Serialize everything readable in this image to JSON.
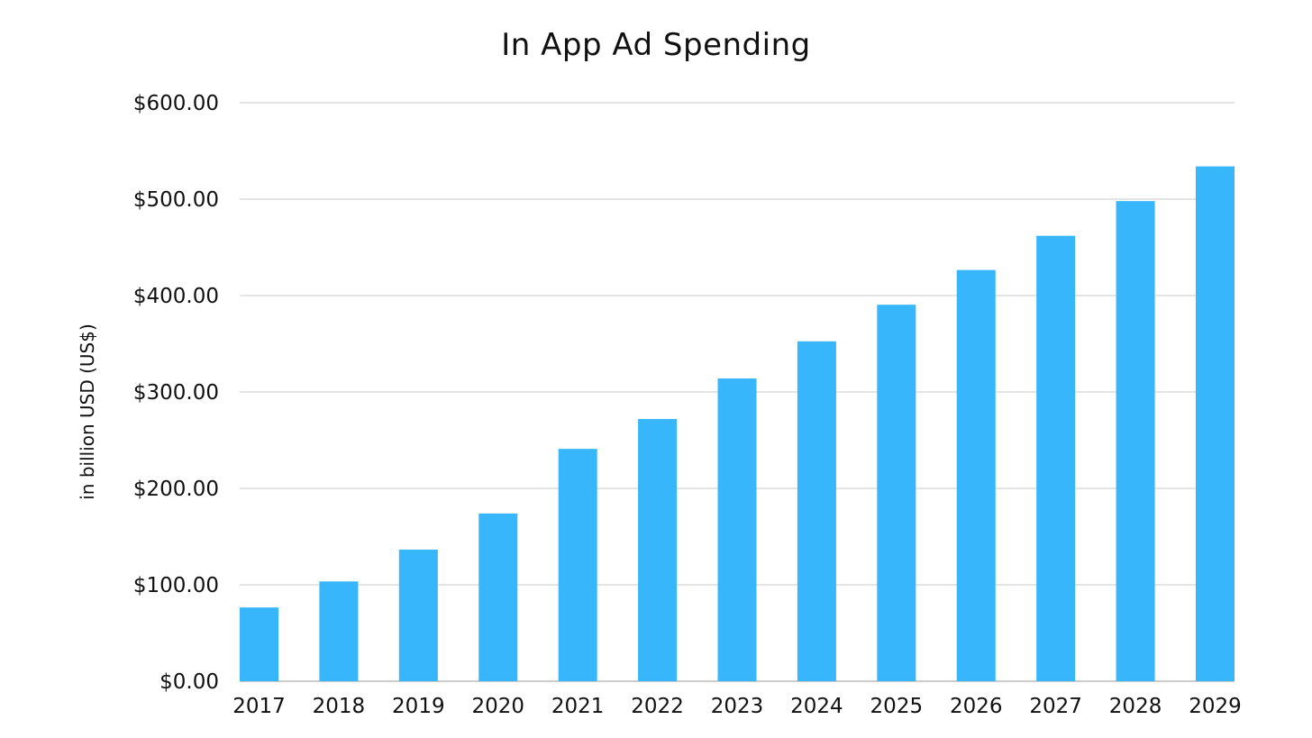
{
  "chart_data": {
    "type": "bar",
    "title": "In App Ad Spending",
    "xlabel": "",
    "ylabel": "in billion USD (US$)",
    "categories": [
      "2017",
      "2018",
      "2019",
      "2020",
      "2021",
      "2022",
      "2023",
      "2024",
      "2025",
      "2026",
      "2027",
      "2028",
      "2029"
    ],
    "values": [
      76.5,
      103.5,
      136.5,
      174.0,
      241.0,
      272.0,
      314.0,
      352.5,
      390.5,
      426.5,
      462.0,
      498.0,
      534.0
    ],
    "ylim": [
      0,
      600
    ],
    "yticks": [
      0,
      100,
      200,
      300,
      400,
      500,
      600
    ],
    "ytick_labels": [
      "$0.00",
      "$100.00",
      "$200.00",
      "$300.00",
      "$400.00",
      "$500.00",
      "$600.00"
    ],
    "grid": true,
    "legend": "none",
    "bar_color": "#38b6fc",
    "grid_color": "#c8c8c8"
  }
}
